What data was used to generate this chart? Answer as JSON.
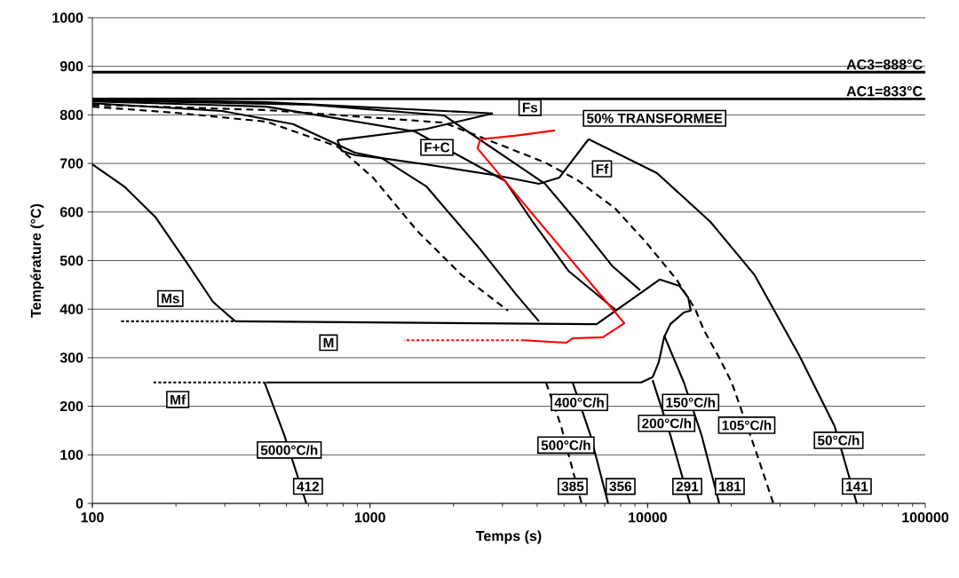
{
  "chart_data": {
    "type": "line",
    "xlabel": "Temps (s)",
    "ylabel": "Température (°C)",
    "log": "x",
    "grid": "y",
    "marker": "none",
    "xlim": [
      100,
      100000
    ],
    "xticks": [
      100,
      1000,
      10000,
      100000
    ],
    "ylim": [
      0,
      1000
    ],
    "yticks": [
      0,
      100,
      200,
      300,
      400,
      500,
      600,
      700,
      800,
      900,
      1000
    ],
    "ref_lines": [
      {
        "axis": "y",
        "value": 888,
        "label": "AC3=888°C"
      },
      {
        "axis": "y",
        "value": 833,
        "label": "AC1=833°C"
      }
    ],
    "series": [
      {
        "color": "#000000",
        "line_style": "solid",
        "x": [
          100,
          130,
          169,
          218,
          272,
          327,
          365,
          417,
          491,
          590
        ],
        "values": [
          698,
          653,
          589,
          497,
          415,
          375,
          null,
          249,
          141,
          0
        ]
      },
      {
        "color": "#000000",
        "line_style": "dotted",
        "x": [
          127,
          327
        ],
        "values": [
          375,
          375
        ]
      },
      {
        "color": "#000000",
        "line_style": "dotted",
        "x": [
          166,
          423
        ],
        "values": [
          249,
          249
        ]
      },
      {
        "color": "#000000",
        "line_style": "solid",
        "x": [
          327,
          6550,
          11050,
          13000,
          14000,
          14300,
          13490,
          12070,
          11460,
          10970,
          10420,
          9470,
          423
        ],
        "values": [
          375,
          369,
          461,
          448,
          424,
          397,
          393,
          369,
          342,
          291,
          260,
          249,
          249
        ]
      },
      {
        "color": "#000000",
        "line_style": "solid",
        "x": [
          100,
          424,
          2770
        ],
        "values": [
          832,
          826,
          803
        ]
      },
      {
        "color": "#000000",
        "line_style": "solid",
        "x": [
          2770,
          1594,
          763
        ],
        "values": [
          803,
          771,
          748
        ]
      },
      {
        "color": "#000000",
        "line_style": "solid",
        "x": [
          763,
          792,
          884,
          1103,
          1594,
          2872,
          4060,
          4810,
          6130
        ],
        "values": [
          748,
          726,
          717,
          711,
          698,
          675,
          658,
          671,
          750
        ]
      },
      {
        "color": "#000000",
        "line_style": "solid",
        "x": [
          6130,
          10810,
          16820,
          24300,
          35150,
          47150,
          56670
        ],
        "values": [
          750,
          680,
          580,
          470,
          305,
          159,
          0
        ]
      },
      {
        "color": "#000000",
        "line_style": "dashed",
        "x": [
          100,
          203,
          424,
          763,
          1025,
          1480,
          2140,
          3140,
          3855,
          4305,
          4880,
          5780
        ],
        "values": [
          817,
          804,
          786,
          735,
          671,
          561,
          470,
          397,
          null,
          249,
          159,
          0
        ]
      },
      {
        "color": "#000000",
        "line_style": "solid",
        "x": [
          100,
          293,
          528,
          884,
          1103,
          1594,
          2480,
          3330,
          4060,
          4640,
          5370,
          6220,
          7210
        ],
        "values": [
          824,
          808,
          781,
          722,
          711,
          653,
          525,
          433,
          375,
          null,
          249,
          141,
          0
        ]
      },
      {
        "color": "#000000",
        "line_style": "solid",
        "x": [
          100,
          424,
          1449,
          3070,
          3855,
          5180,
          7650,
          8990,
          10420,
          12070,
          14200
        ],
        "values": [
          828,
          817,
          766,
          664,
          580,
          479,
          399,
          null,
          254,
          141,
          0
        ]
      },
      {
        "color": "#000000",
        "line_style": "solid",
        "x": [
          100,
          612,
          1847,
          4275,
          5570,
          7480,
          9400,
          10420,
          11460,
          13490,
          15630,
          18110
        ],
        "values": [
          830,
          821,
          799,
          658,
          580,
          488,
          439,
          null,
          346,
          250,
          141,
          0
        ]
      },
      {
        "color": "#000000",
        "line_style": "dashed",
        "x": [
          100,
          424,
          1847,
          4275,
          5650,
          7650,
          9890,
          12710,
          14840,
          15970,
          18110,
          20080,
          24660,
          28370
        ],
        "values": [
          821,
          810,
          784,
          702,
          664,
          607,
          537,
          461,
          400,
          356,
          300,
          249,
          104,
          0
        ]
      },
      {
        "color": "#ff0000",
        "line_style": "solid",
        "x": [
          4640,
          3330,
          2500,
          2440,
          8240,
          6900,
          5370,
          5100,
          3580
        ],
        "values": [
          768,
          757,
          750,
          731,
          371,
          342,
          340,
          331,
          336
        ]
      },
      {
        "color": "#ff0000",
        "line_style": "dotted",
        "x": [
          3580,
          1325
        ],
        "values": [
          336,
          336
        ]
      }
    ],
    "annotations": [
      {
        "text": "Fs",
        "x": 3770,
        "y": 815
      },
      "50% TRANSFORMEE",
      {
        "text": "F+C",
        "x": 1742,
        "y": 733
      },
      {
        "text": "Ff",
        "x": 6850,
        "y": 689
      },
      {
        "text": "Ms",
        "x": 191,
        "y": 422
      },
      {
        "text": "M",
        "x": 709,
        "y": 331
      },
      {
        "text": "Mf",
        "x": 203,
        "y": 214
      },
      {
        "text": "5000°C/h",
        "x": 512,
        "y": 110
      },
      {
        "text": "412",
        "x": 598,
        "y": 35
      },
      {
        "text": "500°C/h",
        "x": 5080,
        "y": 120
      },
      {
        "text": "400°C/h",
        "x": 5680,
        "y": 208
      },
      {
        "text": "385",
        "x": 5370,
        "y": 35
      },
      {
        "text": "356",
        "x": 7990,
        "y": 35
      },
      {
        "text": "200°C/h",
        "x": 11710,
        "y": 165
      },
      {
        "text": "150°C/h",
        "x": 14280,
        "y": 208
      },
      {
        "text": "291",
        "x": 13890,
        "y": 35
      },
      {
        "text": "181",
        "x": 19770,
        "y": 35
      },
      {
        "text": "105°C/h",
        "x": 22750,
        "y": 161
      },
      {
        "text": "50°C/h",
        "x": 48750,
        "y": 130
      },
      {
        "text": "141",
        "x": 56670,
        "y": 35
      }
    ]
  }
}
